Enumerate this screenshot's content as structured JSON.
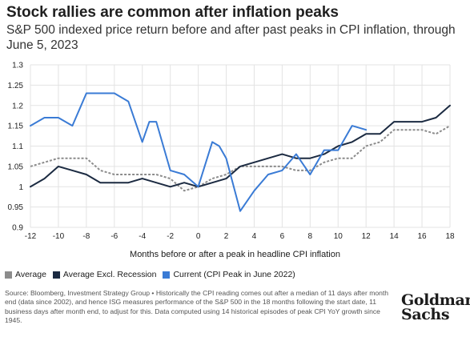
{
  "header": {
    "title": "Stock rallies are common after inflation peaks",
    "subtitle": "S&P 500 indexed price return before and after past peaks in CPI inflation, through June 5, 2023"
  },
  "chart_data": {
    "type": "line",
    "title": "Stock rallies are common after inflation peaks",
    "subtitle": "S&P 500 indexed price return before and after past peaks in CPI inflation, through June 5, 2023",
    "xlabel": "Months before or after a peak in headline CPI inflation",
    "ylabel": "",
    "xlim": [
      -12,
      18
    ],
    "ylim": [
      0.9,
      1.3
    ],
    "x_ticks": [
      -12,
      -10,
      -8,
      -6,
      -4,
      -2,
      0,
      2,
      4,
      6,
      8,
      10,
      12,
      14,
      16,
      18
    ],
    "y_ticks": [
      0.9,
      0.95,
      1,
      1.05,
      1.1,
      1.15,
      1.2,
      1.25,
      1.3
    ],
    "x_tick_labels": [
      "-12",
      "-10",
      "-8",
      "-6",
      "-4",
      "-2",
      "0",
      "2",
      "4",
      "6",
      "8",
      "10",
      "12",
      "14",
      "16",
      "18"
    ],
    "y_tick_labels": [
      "0.9",
      "0.95",
      "1",
      "1.05",
      "1.1",
      "1.15",
      "1.2",
      "1.25",
      "1.3"
    ],
    "grid": true,
    "legend_position": "bottom-left",
    "series": [
      {
        "name": "Average",
        "color": "#8c8c8c",
        "style": "dashed",
        "x": [
          -12,
          -11,
          -10,
          -9,
          -8,
          -7,
          -6,
          -5,
          -4,
          -3,
          -2,
          -1,
          0,
          1,
          2,
          3,
          4,
          5,
          6,
          7,
          8,
          9,
          10,
          11,
          12,
          13,
          14,
          15,
          16,
          17,
          18
        ],
        "values": [
          1.05,
          1.06,
          1.07,
          1.07,
          1.07,
          1.04,
          1.03,
          1.03,
          1.03,
          1.03,
          1.02,
          0.99,
          1.0,
          1.02,
          1.03,
          1.05,
          1.05,
          1.05,
          1.05,
          1.04,
          1.04,
          1.06,
          1.07,
          1.07,
          1.1,
          1.11,
          1.14,
          1.14,
          1.14,
          1.13,
          1.15
        ]
      },
      {
        "name": "Average Excl. Recession",
        "color": "#1b2a41",
        "style": "solid",
        "x": [
          -12,
          -11,
          -10,
          -9,
          -8,
          -7,
          -6,
          -5,
          -4,
          -3,
          -2,
          -1,
          0,
          1,
          2,
          3,
          4,
          5,
          6,
          7,
          8,
          9,
          10,
          11,
          12,
          13,
          14,
          15,
          16,
          17,
          18
        ],
        "values": [
          1.0,
          1.02,
          1.05,
          1.04,
          1.03,
          1.01,
          1.01,
          1.01,
          1.02,
          1.01,
          1.0,
          1.01,
          1.0,
          1.01,
          1.02,
          1.05,
          1.06,
          1.07,
          1.08,
          1.07,
          1.07,
          1.08,
          1.1,
          1.11,
          1.13,
          1.13,
          1.16,
          1.16,
          1.16,
          1.17,
          1.2
        ]
      },
      {
        "name": "Current (CPI Peak in June 2022)",
        "color": "#3a7bd5",
        "style": "solid",
        "x": [
          -12,
          -11,
          -10,
          -9,
          -8,
          -7,
          -6,
          -5,
          -4,
          -3.5,
          -3,
          -2,
          -1,
          0,
          1,
          1.5,
          2,
          3,
          4,
          5,
          6,
          7,
          8,
          9,
          10,
          11,
          12
        ],
        "values": [
          1.15,
          1.17,
          1.17,
          1.15,
          1.23,
          1.23,
          1.23,
          1.21,
          1.11,
          1.16,
          1.16,
          1.04,
          1.03,
          1.0,
          1.11,
          1.1,
          1.07,
          0.94,
          0.99,
          1.03,
          1.04,
          1.08,
          1.03,
          1.09,
          1.09,
          1.15,
          1.14
        ]
      }
    ]
  },
  "legend": {
    "items": [
      {
        "label": "Average",
        "color": "#8c8c8c"
      },
      {
        "label": "Average Excl. Recession",
        "color": "#1b2a41"
      },
      {
        "label": "Current (CPI Peak in June 2022)",
        "color": "#3a7bd5"
      }
    ]
  },
  "footer": {
    "source": "Source: Bloomberg, Investment Strategy Group • Historically the CPI reading comes out after a median of 11 days after month end (data since 2002), and hence ISG measures performance of the S&P 500 in the 18 months following the start date, 11 business days after month end, to adjust for this. Data computed using 14 historical episodes of peak CPI YoY growth since 1945.",
    "logo_line1": "Goldman",
    "logo_line2": "Sachs"
  }
}
